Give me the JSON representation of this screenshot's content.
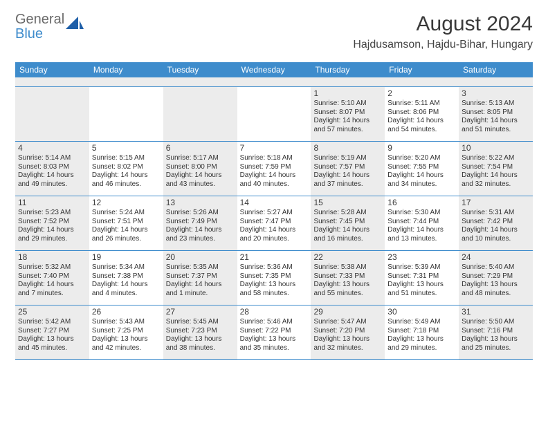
{
  "logo": {
    "word1": "General",
    "word2": "Blue",
    "shape_color": "#1f5fa8"
  },
  "header": {
    "month_title": "August 2024",
    "location": "Hajdusamson, Hajdu-Bihar, Hungary"
  },
  "colors": {
    "header_bg": "#3e8ccc",
    "shade_bg": "#ececec",
    "rule": "#3e8ccc",
    "text": "#333333"
  },
  "day_names": [
    "Sunday",
    "Monday",
    "Tuesday",
    "Wednesday",
    "Thursday",
    "Friday",
    "Saturday"
  ],
  "weeks": [
    [
      {
        "shaded": true
      },
      {},
      {
        "shaded": true
      },
      {},
      {
        "shaded": true,
        "num": "1",
        "sunrise": "5:10 AM",
        "sunset": "8:07 PM",
        "daylight": "14 hours and 57 minutes."
      },
      {
        "num": "2",
        "sunrise": "5:11 AM",
        "sunset": "8:06 PM",
        "daylight": "14 hours and 54 minutes."
      },
      {
        "shaded": true,
        "num": "3",
        "sunrise": "5:13 AM",
        "sunset": "8:05 PM",
        "daylight": "14 hours and 51 minutes."
      }
    ],
    [
      {
        "shaded": true,
        "num": "4",
        "sunrise": "5:14 AM",
        "sunset": "8:03 PM",
        "daylight": "14 hours and 49 minutes."
      },
      {
        "num": "5",
        "sunrise": "5:15 AM",
        "sunset": "8:02 PM",
        "daylight": "14 hours and 46 minutes."
      },
      {
        "shaded": true,
        "num": "6",
        "sunrise": "5:17 AM",
        "sunset": "8:00 PM",
        "daylight": "14 hours and 43 minutes."
      },
      {
        "num": "7",
        "sunrise": "5:18 AM",
        "sunset": "7:59 PM",
        "daylight": "14 hours and 40 minutes."
      },
      {
        "shaded": true,
        "num": "8",
        "sunrise": "5:19 AM",
        "sunset": "7:57 PM",
        "daylight": "14 hours and 37 minutes."
      },
      {
        "num": "9",
        "sunrise": "5:20 AM",
        "sunset": "7:55 PM",
        "daylight": "14 hours and 34 minutes."
      },
      {
        "shaded": true,
        "num": "10",
        "sunrise": "5:22 AM",
        "sunset": "7:54 PM",
        "daylight": "14 hours and 32 minutes."
      }
    ],
    [
      {
        "shaded": true,
        "num": "11",
        "sunrise": "5:23 AM",
        "sunset": "7:52 PM",
        "daylight": "14 hours and 29 minutes."
      },
      {
        "num": "12",
        "sunrise": "5:24 AM",
        "sunset": "7:51 PM",
        "daylight": "14 hours and 26 minutes."
      },
      {
        "shaded": true,
        "num": "13",
        "sunrise": "5:26 AM",
        "sunset": "7:49 PM",
        "daylight": "14 hours and 23 minutes."
      },
      {
        "num": "14",
        "sunrise": "5:27 AM",
        "sunset": "7:47 PM",
        "daylight": "14 hours and 20 minutes."
      },
      {
        "shaded": true,
        "num": "15",
        "sunrise": "5:28 AM",
        "sunset": "7:45 PM",
        "daylight": "14 hours and 16 minutes."
      },
      {
        "num": "16",
        "sunrise": "5:30 AM",
        "sunset": "7:44 PM",
        "daylight": "14 hours and 13 minutes."
      },
      {
        "shaded": true,
        "num": "17",
        "sunrise": "5:31 AM",
        "sunset": "7:42 PM",
        "daylight": "14 hours and 10 minutes."
      }
    ],
    [
      {
        "shaded": true,
        "num": "18",
        "sunrise": "5:32 AM",
        "sunset": "7:40 PM",
        "daylight": "14 hours and 7 minutes."
      },
      {
        "num": "19",
        "sunrise": "5:34 AM",
        "sunset": "7:38 PM",
        "daylight": "14 hours and 4 minutes."
      },
      {
        "shaded": true,
        "num": "20",
        "sunrise": "5:35 AM",
        "sunset": "7:37 PM",
        "daylight": "14 hours and 1 minute."
      },
      {
        "num": "21",
        "sunrise": "5:36 AM",
        "sunset": "7:35 PM",
        "daylight": "13 hours and 58 minutes."
      },
      {
        "shaded": true,
        "num": "22",
        "sunrise": "5:38 AM",
        "sunset": "7:33 PM",
        "daylight": "13 hours and 55 minutes."
      },
      {
        "num": "23",
        "sunrise": "5:39 AM",
        "sunset": "7:31 PM",
        "daylight": "13 hours and 51 minutes."
      },
      {
        "shaded": true,
        "num": "24",
        "sunrise": "5:40 AM",
        "sunset": "7:29 PM",
        "daylight": "13 hours and 48 minutes."
      }
    ],
    [
      {
        "shaded": true,
        "num": "25",
        "sunrise": "5:42 AM",
        "sunset": "7:27 PM",
        "daylight": "13 hours and 45 minutes."
      },
      {
        "num": "26",
        "sunrise": "5:43 AM",
        "sunset": "7:25 PM",
        "daylight": "13 hours and 42 minutes."
      },
      {
        "shaded": true,
        "num": "27",
        "sunrise": "5:45 AM",
        "sunset": "7:23 PM",
        "daylight": "13 hours and 38 minutes."
      },
      {
        "num": "28",
        "sunrise": "5:46 AM",
        "sunset": "7:22 PM",
        "daylight": "13 hours and 35 minutes."
      },
      {
        "shaded": true,
        "num": "29",
        "sunrise": "5:47 AM",
        "sunset": "7:20 PM",
        "daylight": "13 hours and 32 minutes."
      },
      {
        "num": "30",
        "sunrise": "5:49 AM",
        "sunset": "7:18 PM",
        "daylight": "13 hours and 29 minutes."
      },
      {
        "shaded": true,
        "num": "31",
        "sunrise": "5:50 AM",
        "sunset": "7:16 PM",
        "daylight": "13 hours and 25 minutes."
      }
    ]
  ]
}
